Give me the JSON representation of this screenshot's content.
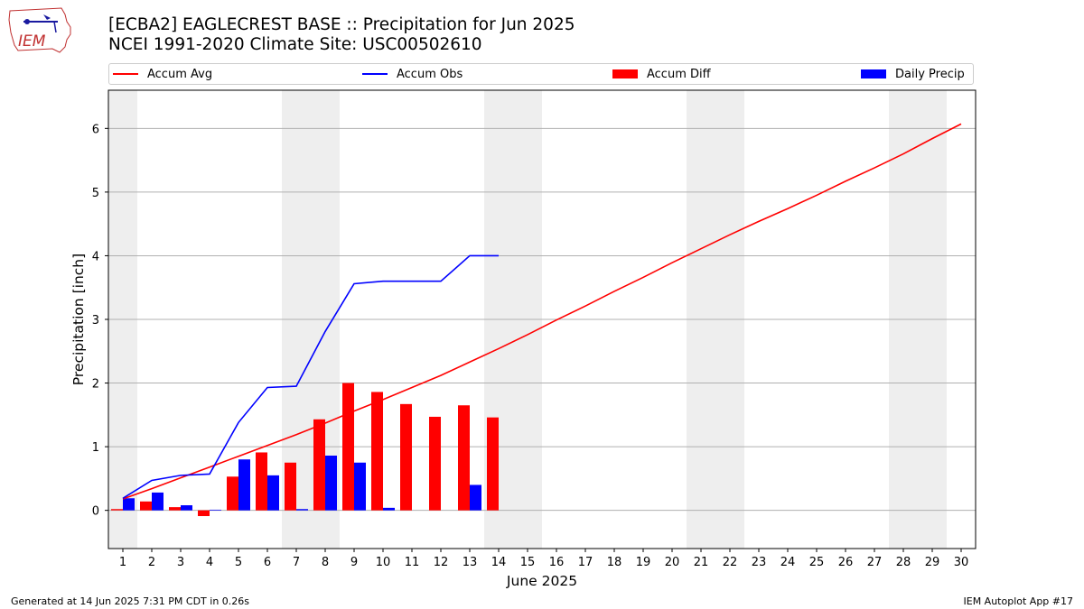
{
  "logo": {
    "text": "IEM"
  },
  "title_line1": "[ECBA2] EAGLECREST BASE :: Precipitation for Jun 2025",
  "title_line2": "NCEI 1991-2020 Climate Site: USC00502610",
  "legend": [
    {
      "label": "Accum Avg",
      "kind": "line",
      "color": "#ff0000"
    },
    {
      "label": "Accum Obs",
      "kind": "line",
      "color": "#0000ff"
    },
    {
      "label": "Accum Diff",
      "kind": "box",
      "color": "#ff0000"
    },
    {
      "label": "Daily Precip",
      "kind": "box",
      "color": "#0000ff"
    }
  ],
  "footer": {
    "left": "Generated at 14 Jun 2025 7:31 PM CDT in 0.26s",
    "right": "IEM Autoplot App #17"
  },
  "chart_data": {
    "type": "bar",
    "xlabel": "June 2025",
    "ylabel": "Precipitation [inch]",
    "xlim": [
      0.5,
      30.5
    ],
    "ylim": [
      -0.6,
      6.6
    ],
    "x_ticks": [
      1,
      2,
      3,
      4,
      5,
      6,
      7,
      8,
      9,
      10,
      11,
      12,
      13,
      14,
      15,
      16,
      17,
      18,
      19,
      20,
      21,
      22,
      23,
      24,
      25,
      26,
      27,
      28,
      29,
      30
    ],
    "y_ticks": [
      0,
      1,
      2,
      3,
      4,
      5,
      6
    ],
    "grid": "horizontal",
    "weekend_shading": [
      [
        0.5,
        1.5
      ],
      [
        6.5,
        8.5
      ],
      [
        13.5,
        15.5
      ],
      [
        20.5,
        22.5
      ],
      [
        27.5,
        29.5
      ]
    ],
    "colors": {
      "avg": "#ff0000",
      "obs": "#0000ff",
      "diff": "#ff0000",
      "daily": "#0000ff",
      "shade": "#eeeeee"
    },
    "series": [
      {
        "name": "Accum Avg",
        "kind": "line",
        "x": [
          1,
          2,
          3,
          4,
          5,
          6,
          7,
          8,
          9,
          10,
          11,
          12,
          13,
          14,
          15,
          16,
          17,
          18,
          19,
          20,
          21,
          22,
          23,
          24,
          25,
          26,
          27,
          28,
          29,
          30
        ],
        "values": [
          0.18,
          0.34,
          0.51,
          0.68,
          0.85,
          1.02,
          1.19,
          1.37,
          1.56,
          1.74,
          1.93,
          2.12,
          2.33,
          2.54,
          2.76,
          2.99,
          3.21,
          3.44,
          3.66,
          3.89,
          4.11,
          4.33,
          4.54,
          4.74,
          4.95,
          5.17,
          5.38,
          5.6,
          5.84,
          6.07
        ]
      },
      {
        "name": "Accum Obs",
        "kind": "line",
        "x": [
          1,
          2,
          3,
          4,
          5,
          6,
          7,
          8,
          9,
          10,
          11,
          12,
          13,
          14
        ],
        "values": [
          0.19,
          0.47,
          0.55,
          0.57,
          1.38,
          1.93,
          1.95,
          2.81,
          3.56,
          3.6,
          3.6,
          3.6,
          4.0,
          4.0
        ]
      },
      {
        "name": "Accum Diff",
        "kind": "bar",
        "x": [
          1,
          2,
          3,
          4,
          5,
          6,
          7,
          8,
          9,
          10,
          11,
          12,
          13,
          14
        ],
        "values": [
          0.02,
          0.14,
          0.05,
          -0.09,
          0.53,
          0.91,
          0.75,
          1.43,
          2.0,
          1.86,
          1.67,
          1.47,
          1.65,
          1.46
        ]
      },
      {
        "name": "Daily Precip",
        "kind": "bar",
        "x": [
          1,
          2,
          3,
          4,
          5,
          6,
          7,
          8,
          9,
          10,
          11,
          12,
          13,
          14
        ],
        "values": [
          0.19,
          0.28,
          0.08,
          0.01,
          0.8,
          0.55,
          0.02,
          0.86,
          0.75,
          0.04,
          0,
          0,
          0.4,
          0
        ]
      }
    ]
  }
}
